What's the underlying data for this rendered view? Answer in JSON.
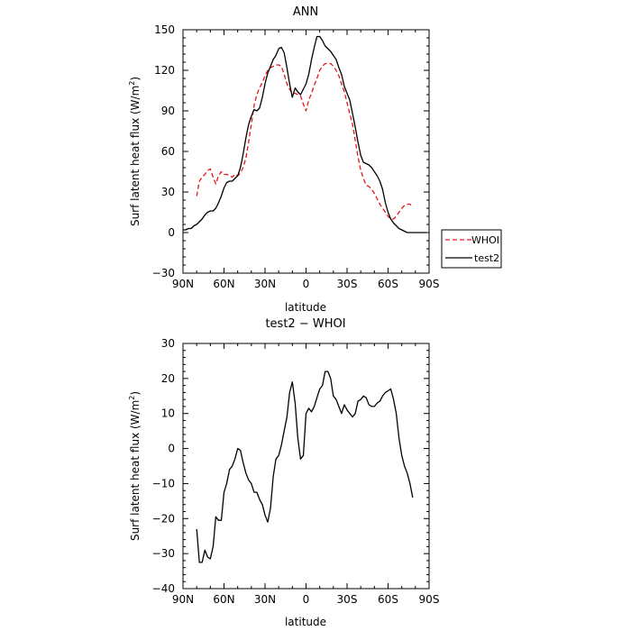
{
  "chart_data": [
    {
      "type": "line",
      "title": "ANN",
      "xlabel": "latitude",
      "ylabel_main": "Surf latent heat flux (W/m",
      "ylabel_sup": "2",
      "ylabel_close": ")",
      "xlim": [
        90,
        -90
      ],
      "ylim": [
        -30,
        150
      ],
      "x_ticks": [
        90,
        60,
        30,
        0,
        -30,
        -60,
        -90
      ],
      "x_tick_labels": [
        "90N",
        "60N",
        "30N",
        "0",
        "30S",
        "60S",
        "90S"
      ],
      "y_ticks": [
        -30,
        0,
        30,
        60,
        90,
        120,
        150
      ],
      "y_tick_labels": [
        "−30",
        "0",
        "30",
        "60",
        "90",
        "120",
        "150"
      ],
      "legend_position": "right",
      "series": [
        {
          "name": "WHOI",
          "color": "#e8141b",
          "dash": "dashed",
          "x": [
            80,
            78,
            76,
            74,
            72,
            70,
            68,
            66,
            64,
            62,
            60,
            58,
            56,
            54,
            52,
            50,
            48,
            46,
            44,
            42,
            40,
            38,
            36,
            34,
            32,
            30,
            28,
            26,
            24,
            22,
            20,
            18,
            16,
            14,
            12,
            10,
            8,
            6,
            4,
            2,
            0,
            -2,
            -4,
            -6,
            -8,
            -10,
            -12,
            -14,
            -16,
            -18,
            -20,
            -22,
            -24,
            -26,
            -28,
            -30,
            -32,
            -34,
            -36,
            -38,
            -40,
            -42,
            -44,
            -46,
            -48,
            -50,
            -52,
            -54,
            -56,
            -58,
            -60,
            -62,
            -64,
            -66,
            -68,
            -70,
            -72,
            -74,
            -76,
            -78
          ],
          "values": [
            27,
            38,
            41,
            43,
            46,
            47,
            41,
            36,
            42,
            45,
            43,
            43,
            42,
            41,
            43,
            42,
            44,
            48,
            55,
            67,
            80,
            94,
            102,
            107,
            111,
            116,
            120,
            122,
            123,
            124,
            124,
            123,
            117,
            110,
            106,
            103,
            103,
            102,
            101,
            95,
            90,
            98,
            103,
            109,
            114,
            120,
            123,
            125,
            125,
            125,
            123,
            120,
            116,
            110,
            104,
            96,
            88,
            80,
            68,
            56,
            46,
            40,
            35,
            34,
            32,
            29,
            25,
            21,
            18,
            15,
            12,
            10,
            10,
            12,
            15,
            18,
            20,
            21,
            21,
            19
          ]
        },
        {
          "name": "test2",
          "color": "#000000",
          "dash": "solid",
          "x": [
            90,
            88,
            86,
            84,
            82,
            80,
            78,
            76,
            74,
            72,
            70,
            68,
            66,
            64,
            62,
            60,
            58,
            56,
            54,
            52,
            50,
            48,
            46,
            44,
            42,
            40,
            38,
            36,
            34,
            32,
            30,
            28,
            26,
            24,
            22,
            20,
            18,
            16,
            14,
            12,
            10,
            8,
            6,
            4,
            2,
            0,
            -2,
            -4,
            -6,
            -8,
            -10,
            -12,
            -14,
            -16,
            -18,
            -20,
            -22,
            -24,
            -26,
            -28,
            -30,
            -32,
            -34,
            -36,
            -38,
            -40,
            -42,
            -44,
            -46,
            -48,
            -50,
            -52,
            -54,
            -56,
            -58,
            -60,
            -62,
            -64,
            -66,
            -68,
            -70,
            -72,
            -74,
            -76,
            -78,
            -80,
            -82,
            -84,
            -86,
            -88
          ],
          "values": [
            2,
            2,
            3,
            3,
            5,
            6,
            8,
            10,
            13,
            15,
            16,
            16,
            18,
            22,
            27,
            33,
            37,
            38,
            38,
            40,
            42,
            48,
            58,
            70,
            80,
            86,
            91,
            90,
            92,
            100,
            110,
            118,
            123,
            128,
            131,
            136,
            137,
            133,
            122,
            110,
            100,
            107,
            104,
            102,
            106,
            110,
            117,
            128,
            137,
            145,
            145,
            142,
            138,
            136,
            134,
            131,
            128,
            122,
            117,
            108,
            103,
            98,
            88,
            78,
            67,
            57,
            52,
            51,
            50,
            48,
            45,
            42,
            38,
            32,
            22,
            15,
            10,
            7,
            5,
            3,
            2,
            1,
            0,
            0,
            0,
            0,
            0,
            0,
            0,
            0
          ]
        }
      ]
    },
    {
      "type": "line",
      "title": "test2 − WHOI",
      "xlabel": "latitude",
      "ylabel_main": "Surf latent heat flux (W/m",
      "ylabel_sup": "2",
      "ylabel_close": ")",
      "xlim": [
        90,
        -90
      ],
      "ylim": [
        -40,
        30
      ],
      "x_ticks": [
        90,
        60,
        30,
        0,
        -30,
        -60,
        -90
      ],
      "x_tick_labels": [
        "90N",
        "60N",
        "30N",
        "0",
        "30S",
        "60S",
        "90S"
      ],
      "y_ticks": [
        -40,
        -30,
        -20,
        -10,
        0,
        10,
        20,
        30
      ],
      "y_tick_labels": [
        "−40",
        "−30",
        "−20",
        "−10",
        "0",
        "10",
        "20",
        "30"
      ],
      "series": [
        {
          "name": "",
          "color": "#000000",
          "dash": "solid",
          "x": [
            80,
            78,
            76,
            74,
            72,
            70,
            68,
            66,
            64,
            62,
            60,
            58,
            56,
            54,
            52,
            50,
            48,
            46,
            44,
            42,
            40,
            38,
            36,
            34,
            32,
            30,
            28,
            26,
            24,
            22,
            20,
            18,
            16,
            14,
            12,
            10,
            8,
            6,
            4,
            2,
            0,
            -2,
            -4,
            -6,
            -8,
            -10,
            -12,
            -14,
            -16,
            -18,
            -20,
            -22,
            -24,
            -26,
            -28,
            -30,
            -32,
            -34,
            -36,
            -38,
            -40,
            -42,
            -44,
            -46,
            -48,
            -50,
            -52,
            -54,
            -56,
            -58,
            -60,
            -62,
            -64,
            -66,
            -68,
            -70,
            -72,
            -74,
            -76,
            -78
          ],
          "values": [
            -23,
            -32.5,
            -32.5,
            -29,
            -31,
            -31.5,
            -28,
            -19.5,
            -20.5,
            -20.5,
            -12.5,
            -10,
            -6,
            -5,
            -3,
            0,
            -0.5,
            -4,
            -7,
            -9,
            -10,
            -12.5,
            -12.5,
            -14.5,
            -16,
            -19,
            -21,
            -17,
            -8,
            -3,
            -2,
            1,
            5,
            9,
            16,
            19,
            13,
            3,
            -3,
            -2,
            10,
            11.5,
            10.5,
            12,
            14.5,
            17,
            18,
            22,
            22,
            20,
            15,
            14,
            12,
            10,
            12.5,
            11,
            10,
            9,
            10,
            13.5,
            14,
            15,
            14.5,
            12.5,
            12,
            12,
            13,
            13.5,
            15,
            16,
            16.5,
            17,
            14,
            10,
            3,
            -2,
            -5,
            -7,
            -10,
            -14
          ]
        }
      ]
    }
  ]
}
